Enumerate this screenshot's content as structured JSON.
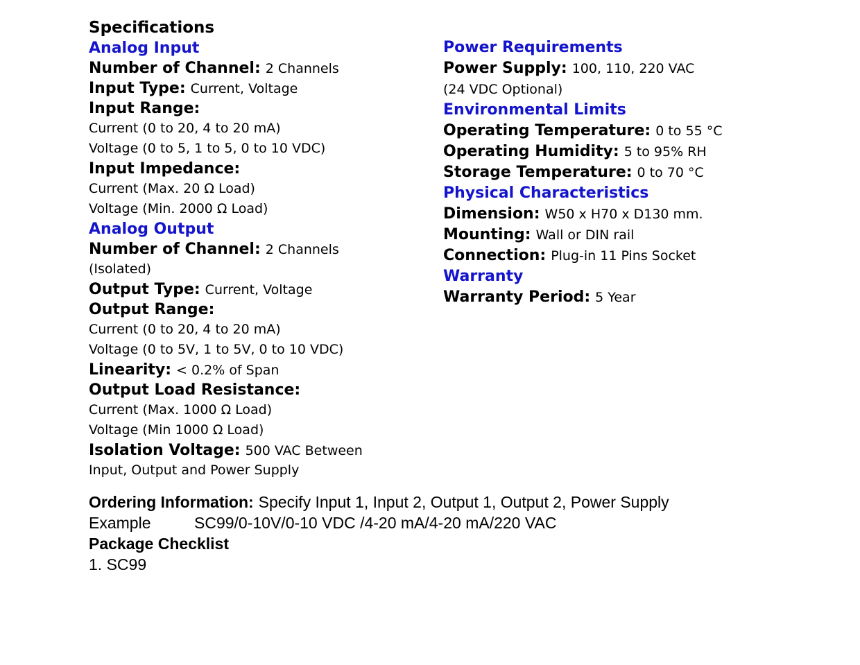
{
  "title": "Specifications",
  "colors": {
    "heading_blue": "#1414CC",
    "text": "#000000",
    "background": "#FFFFFF"
  },
  "left": {
    "lines": [
      {
        "label": "Specifications"
      },
      {
        "label": "Analog Input"
      },
      {
        "label": "Number of Channel:",
        "value": "2 Channels"
      },
      {
        "label": "Input Type:",
        "value": "Current, Voltage"
      },
      {
        "label": "Input Range:"
      },
      {
        "value": "Current (0 to 20, 4 to 20 mA)"
      },
      {
        "value": "Voltage (0 to 5, 1 to 5, 0 to 10 VDC)"
      },
      {
        "label": "Input Impedance:"
      },
      {
        "value": "Current (Max. 20 Ω Load)"
      },
      {
        "value": "Voltage (Min. 2000 Ω Load)"
      },
      {
        "label": "Analog Output"
      },
      {
        "label": "Number of Channel:",
        "value": "2 Channels"
      },
      {
        "value": "(Isolated)"
      },
      {
        "label": "Output Type:",
        "value": "Current, Voltage"
      },
      {
        "label": "Output Range:"
      },
      {
        "value": "Current (0 to 20, 4 to 20 mA)"
      },
      {
        "value": "Voltage (0 to 5V, 1 to 5V, 0 to 10 VDC)"
      },
      {
        "label": "Linearity:",
        "value": "< 0.2% of Span"
      },
      {
        "label": "Output Load Resistance:"
      },
      {
        "value": "Current (Max. 1000 Ω Load)"
      },
      {
        "value": "Voltage (Min 1000 Ω Load)"
      },
      {
        "label": "Isolation Voltage:",
        "value": "500 VAC Between"
      },
      {
        "value": "Input, Output and Power Supply"
      }
    ]
  },
  "right": {
    "lines": [
      {
        "label": "Power Requirements"
      },
      {
        "label": "Power Supply:",
        "value": "100, 110, 220 VAC"
      },
      {
        "value": "(24 VDC Optional)"
      },
      {
        "label": "Environmental Limits"
      },
      {
        "label": "Operating Temperature:",
        "value": "0 to 55 °C"
      },
      {
        "label": "Operating Humidity:",
        "value": "5 to 95% RH"
      },
      {
        "label": "Storage Temperature:",
        "value": "0 to 70 °C"
      },
      {
        "label": "Physical Characteristics"
      },
      {
        "label": "Dimension:",
        "value": "W50 x H70 x D130 mm."
      },
      {
        "label": "Mounting:",
        "value": "Wall or DIN rail"
      },
      {
        "label": "Connection:",
        "value": "Plug-in 11 Pins Socket"
      },
      {
        "label": "Warranty"
      },
      {
        "label": "Warranty Period:",
        "value": "5 Year"
      }
    ]
  },
  "bottom": {
    "ordering_label": "Ordering Information:",
    "ordering_value": "Specify Input 1, Input 2, Output 1, Output 2, Power Supply",
    "example_label": "Example",
    "example_value": "SC99/0-10V/0-10 VDC /4-20 mA/4-20 mA/220 VAC",
    "package_label": "Package Checklist",
    "package_item_1": "1. SC99"
  }
}
